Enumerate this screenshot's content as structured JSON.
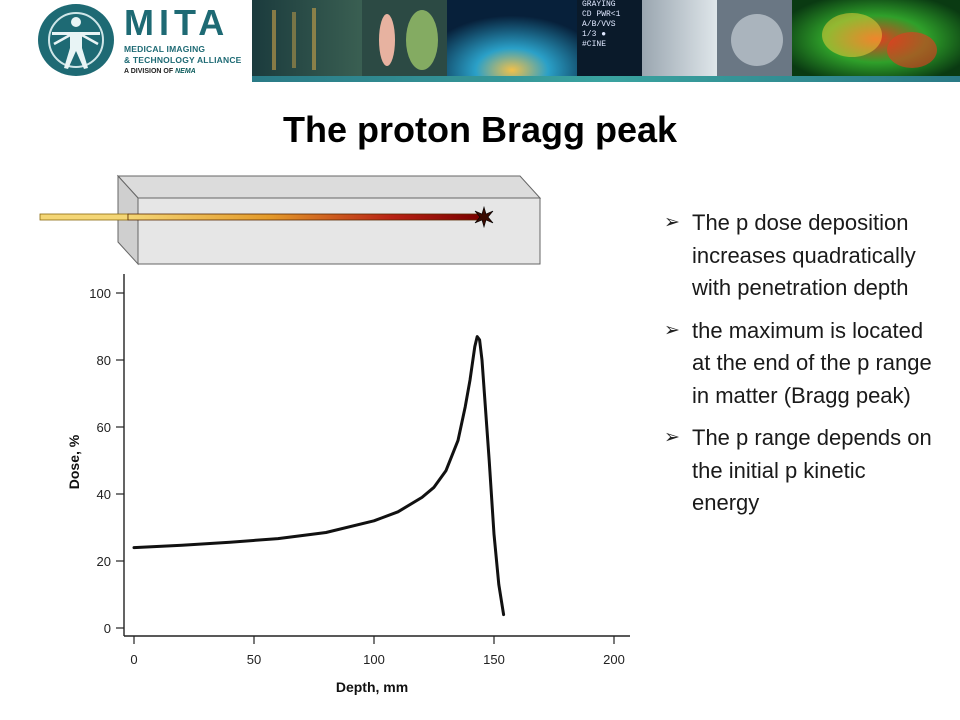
{
  "header": {
    "logo_title": "MITA",
    "logo_line1": "MEDICAL IMAGING",
    "logo_line2": "& TECHNOLOGY ALLIANCE",
    "logo_line3_prefix": "A DIVISION OF",
    "logo_line3_brand": "NEMA",
    "banner_text": "CD PWR<1\nA/B/VVS\n1/3 ●\n#CINE",
    "banner_top": "GRAYING"
  },
  "slide": {
    "title": "The proton Bragg peak",
    "bullets": [
      "The p dose deposition increases quadratically with penetration depth",
      " the maximum is located at the end of the p range in matter (Bragg peak)",
      "The p range depends on the initial p kinetic energy"
    ]
  },
  "colors": {
    "brand": "#1e6a74",
    "beam_start": "#f4d676",
    "beam_end": "#7a0000"
  },
  "chart_data": {
    "type": "line",
    "xlabel": "Depth, mm",
    "ylabel": "Dose, %",
    "xlim": [
      0,
      200
    ],
    "ylim": [
      0,
      100
    ],
    "xticks": [
      0,
      50,
      100,
      150,
      200
    ],
    "yticks": [
      0,
      20,
      40,
      60,
      80,
      100
    ],
    "grid": false,
    "series": [
      {
        "x": [
          0,
          20,
          40,
          60,
          80,
          100,
          110,
          120,
          125,
          130,
          135,
          138,
          140,
          141,
          142,
          143,
          144,
          145,
          146,
          148,
          150,
          152,
          154
        ],
        "y": [
          24,
          24.7,
          25.6,
          26.7,
          28.5,
          32,
          34.7,
          39,
          42,
          47,
          56,
          66,
          74,
          79,
          84,
          87,
          86,
          80,
          70,
          50,
          28,
          13,
          4
        ]
      }
    ]
  }
}
